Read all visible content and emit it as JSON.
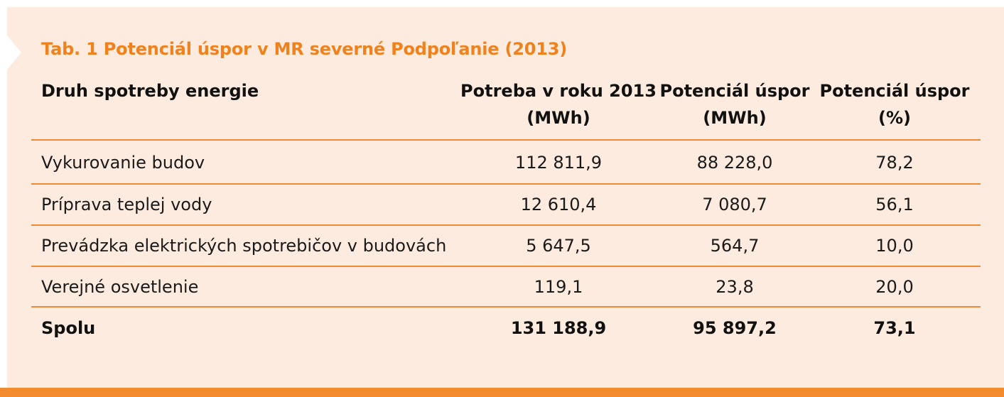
{
  "table": {
    "title": "Tab. 1 Potenciál úspor v MR severné Podpoľanie (2013)",
    "headers": [
      {
        "line1": "Druh spotreby energie",
        "line2": ""
      },
      {
        "line1": "Potreba v roku 2013",
        "line2": "(MWh)"
      },
      {
        "line1": "Potenciál úspor",
        "line2": "(MWh)"
      },
      {
        "line1": "Potenciál úspor",
        "line2": "(%)"
      }
    ],
    "rows": [
      [
        "Vykurovanie budov",
        "112 811,9",
        "88 228,0",
        "78,2"
      ],
      [
        "Príprava teplej vody",
        "12 610,4",
        "7 080,7",
        "56,1"
      ],
      [
        "Prevádzka elektrických spotrebičov v budovách",
        "5 647,5",
        "564,7",
        "10,0"
      ],
      [
        "Verejné osvetlenie",
        "119,1",
        "23,8",
        "20,0"
      ],
      [
        "Spolu",
        "131 188,9",
        "95 897,2",
        "73,1"
      ]
    ]
  },
  "colors": {
    "accent": "#f0821e",
    "panel_background": "#fcebde",
    "rule": "#f08a36",
    "bottom_bar": "#f28a2e"
  }
}
